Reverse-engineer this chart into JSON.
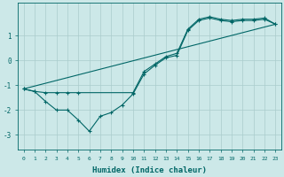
{
  "xlabel": "Humidex (Indice chaleur)",
  "bg_color": "#cce8e8",
  "grid_color": "#aacccc",
  "line_color": "#006666",
  "xlim": [
    -0.5,
    23.5
  ],
  "ylim": [
    -3.6,
    2.3
  ],
  "xticks": [
    0,
    1,
    2,
    3,
    4,
    5,
    6,
    7,
    8,
    9,
    10,
    11,
    12,
    13,
    14,
    15,
    16,
    17,
    18,
    19,
    20,
    21,
    22,
    23
  ],
  "yticks": [
    -3,
    -2,
    -1,
    0,
    1
  ],
  "curve1_x": [
    0,
    1,
    2,
    3,
    4,
    5,
    6,
    7,
    8,
    9,
    10,
    11,
    12,
    13,
    14,
    15,
    16,
    17,
    18,
    19,
    20,
    21,
    22,
    23
  ],
  "curve1_y": [
    -1.15,
    -1.25,
    -1.65,
    -2.0,
    -2.0,
    -2.4,
    -2.85,
    -2.25,
    -2.1,
    -1.8,
    -1.35,
    -0.55,
    -0.2,
    0.1,
    0.2,
    1.2,
    1.6,
    1.7,
    1.6,
    1.55,
    1.6,
    1.6,
    1.65,
    1.45
  ],
  "curve2_x": [
    0,
    1,
    2,
    3,
    4,
    5,
    10,
    11,
    12,
    13,
    14,
    15,
    16,
    17,
    18,
    19,
    20,
    21,
    22,
    23
  ],
  "curve2_y": [
    -1.15,
    -1.25,
    -1.3,
    -1.3,
    -1.3,
    -1.3,
    -1.3,
    -0.45,
    -0.15,
    0.15,
    0.28,
    1.25,
    1.65,
    1.75,
    1.65,
    1.6,
    1.65,
    1.65,
    1.7,
    1.45
  ],
  "line3_x": [
    0,
    23
  ],
  "line3_y": [
    -1.15,
    1.45
  ]
}
